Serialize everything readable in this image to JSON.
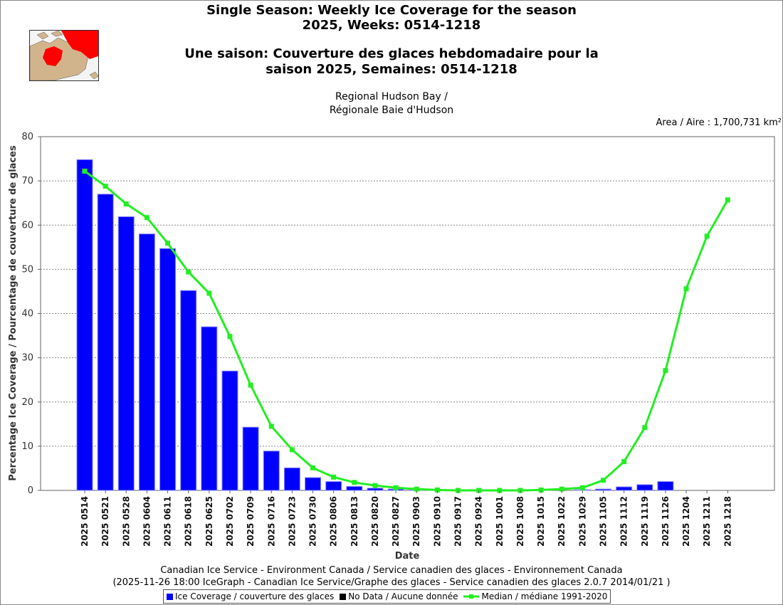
{
  "header": {
    "title_en_1": "Single Season: Weekly Ice Coverage for the season",
    "title_en_2": "2025, Weeks: 0514-1218",
    "title_fr_1": "Une saison: Couverture des glaces hebdomadaire pour la",
    "title_fr_2": "saison 2025, Semaines: 0514-1218",
    "region_1": "Regional Hudson Bay /",
    "region_2": "Régionale Baie d'Hudson",
    "area": "Area / Aire : 1,700,731 km²"
  },
  "footer": {
    "credit_1": "Canadian Ice Service - Environment Canada / Service canadien des glaces - Environnement Canada",
    "credit_2": "(2025-11-26 18:00 IceGraph - Canadian Ice Service/Graphe des glaces - Service canadien des glaces 2.0.7 2014/01/21 )"
  },
  "legend": {
    "ice": "Ice Coverage / couverture des glaces",
    "nodata": "No Data / Aucune donnée",
    "median": "Median / médiane 1991-2020"
  },
  "colors": {
    "bar": "#0000ff",
    "median": "#22ee22",
    "nodata": "#000000",
    "grid": "#888888"
  },
  "chart_data": {
    "type": "bar",
    "title": "Single Season: Weekly Ice Coverage for the season 2025, Weeks: 0514-1218",
    "xlabel": "Date",
    "ylabel": "Percentage Ice Coverage / Pourcentage de couverture de glaces",
    "ylim": [
      0,
      80
    ],
    "yticks": [
      0,
      10,
      20,
      30,
      40,
      50,
      60,
      70,
      80
    ],
    "grid": true,
    "categories": [
      "2025 0514",
      "2025 0521",
      "2025 0528",
      "2025 0604",
      "2025 0611",
      "2025 0618",
      "2025 0625",
      "2025 0702",
      "2025 0709",
      "2025 0716",
      "2025 0723",
      "2025 0730",
      "2025 0806",
      "2025 0813",
      "2025 0820",
      "2025 0827",
      "2025 0903",
      "2025 0910",
      "2025 0917",
      "2025 0924",
      "2025 1001",
      "2025 1008",
      "2025 1015",
      "2025 1022",
      "2025 1029",
      "2025 1105",
      "2025 1112",
      "2025 1119",
      "2025 1126",
      "2025 1204",
      "2025 1211",
      "2025 1218"
    ],
    "series": [
      {
        "name": "Ice Coverage / couverture des glaces",
        "kind": "bar",
        "values": [
          74.8,
          67.0,
          61.9,
          58.0,
          54.7,
          45.2,
          37.0,
          27.0,
          14.3,
          8.9,
          5.1,
          2.9,
          2.0,
          0.9,
          0.5,
          0.3,
          0.1,
          0.0,
          0.0,
          0.0,
          0.0,
          0.0,
          0.0,
          0.0,
          0.1,
          0.3,
          0.8,
          1.3,
          2.0,
          null,
          null,
          null
        ]
      },
      {
        "name": "Median / médiane 1991-2020",
        "kind": "line",
        "values": [
          72.2,
          68.8,
          64.8,
          61.7,
          55.9,
          49.4,
          44.6,
          34.8,
          23.8,
          14.5,
          9.2,
          5.1,
          3.0,
          1.8,
          1.1,
          0.6,
          0.3,
          0.1,
          0.0,
          0.0,
          0.0,
          0.0,
          0.1,
          0.3,
          0.6,
          2.3,
          6.5,
          14.2,
          27.1,
          45.6,
          57.5,
          65.7
        ]
      }
    ]
  }
}
